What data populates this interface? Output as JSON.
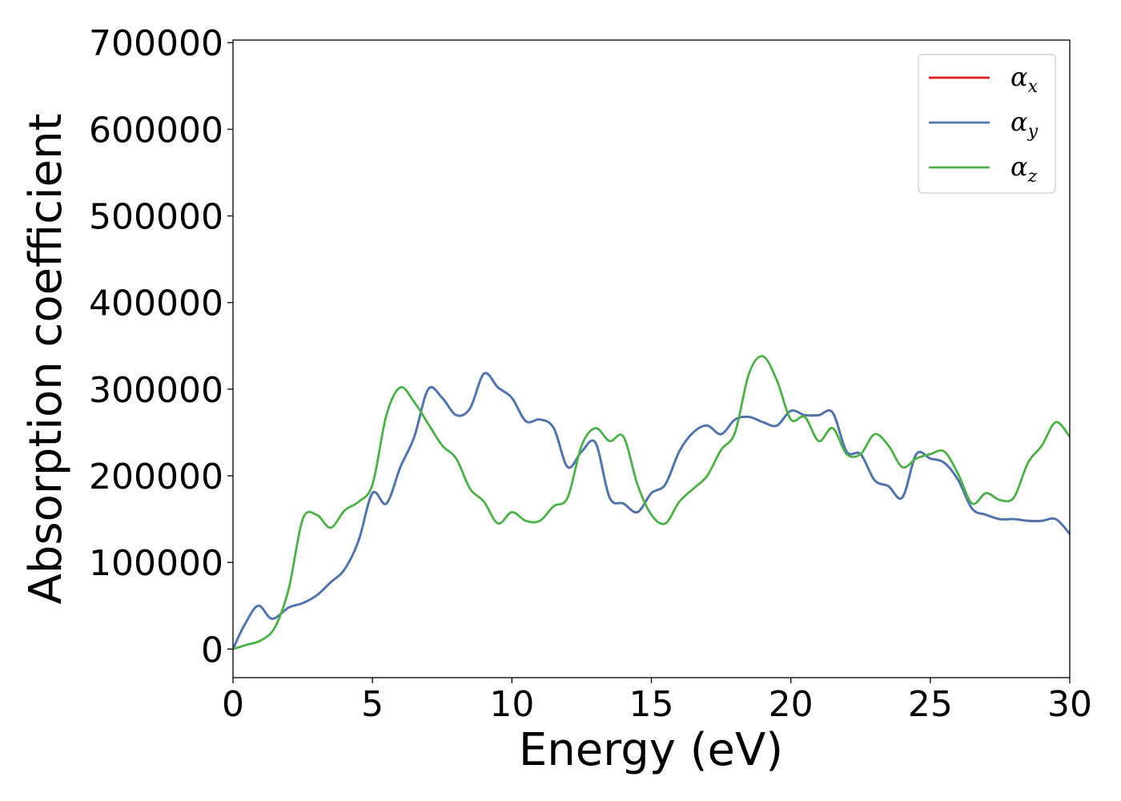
{
  "chart_data": {
    "type": "line",
    "title": "",
    "xlabel": "Energy (eV)",
    "ylabel": "Absorption coefficient",
    "xlim": [
      0,
      30
    ],
    "ylim": [
      -33000,
      703000
    ],
    "xticks": [
      0,
      5,
      10,
      15,
      20,
      25,
      30
    ],
    "yticks": [
      0,
      100000,
      200000,
      300000,
      400000,
      500000,
      600000,
      700000
    ],
    "grid": false,
    "legend_position": "top-right",
    "series": [
      {
        "name": "α_x",
        "legend_base": "α",
        "legend_sub": "x",
        "color": "#e41a1c",
        "x": [
          0,
          0.4,
          0.9,
          1.4,
          2.0,
          2.5,
          3.0,
          3.5,
          4.0,
          4.5,
          5.0,
          5.5,
          6.0,
          6.5,
          7.0,
          7.5,
          8.0,
          8.5,
          9.0,
          9.5,
          10.0,
          10.5,
          11.0,
          11.5,
          12.0,
          12.5,
          13.0,
          13.5,
          14.0,
          14.5,
          15.0,
          15.5,
          16.0,
          16.5,
          17.0,
          17.5,
          18.0,
          18.5,
          19.0,
          19.5,
          20.0,
          20.5,
          21.0,
          21.5,
          22.0,
          22.5,
          23.0,
          23.5,
          24.0,
          24.5,
          25.0,
          25.5,
          26.0,
          26.5,
          27.0,
          27.5,
          28.0,
          28.5,
          29.0,
          29.5,
          30.0
        ],
        "y": [
          0,
          27000,
          50000,
          35000,
          48000,
          53000,
          62000,
          77000,
          92000,
          125000,
          180000,
          168000,
          210000,
          245000,
          300000,
          290000,
          270000,
          278000,
          318000,
          302000,
          290000,
          263000,
          265000,
          255000,
          210000,
          228000,
          238000,
          175000,
          168000,
          158000,
          180000,
          190000,
          228000,
          250000,
          258000,
          248000,
          265000,
          268000,
          262000,
          258000,
          275000,
          270000,
          270000,
          273000,
          228000,
          225000,
          195000,
          188000,
          175000,
          225000,
          220000,
          215000,
          195000,
          162000,
          155000,
          150000,
          150000,
          148000,
          148000,
          150000,
          133000
        ]
      },
      {
        "name": "α_y",
        "legend_base": "α",
        "legend_sub": "y",
        "color": "#4a77b0",
        "x": [
          0,
          0.4,
          0.9,
          1.4,
          2.0,
          2.5,
          3.0,
          3.5,
          4.0,
          4.5,
          5.0,
          5.5,
          6.0,
          6.5,
          7.0,
          7.5,
          8.0,
          8.5,
          9.0,
          9.5,
          10.0,
          10.5,
          11.0,
          11.5,
          12.0,
          12.5,
          13.0,
          13.5,
          14.0,
          14.5,
          15.0,
          15.5,
          16.0,
          16.5,
          17.0,
          17.5,
          18.0,
          18.5,
          19.0,
          19.5,
          20.0,
          20.5,
          21.0,
          21.5,
          22.0,
          22.5,
          23.0,
          23.5,
          24.0,
          24.5,
          25.0,
          25.5,
          26.0,
          26.5,
          27.0,
          27.5,
          28.0,
          28.5,
          29.0,
          29.5,
          30.0
        ],
        "y": [
          0,
          27000,
          50000,
          35000,
          48000,
          53000,
          62000,
          77000,
          92000,
          125000,
          180000,
          168000,
          210000,
          245000,
          300000,
          290000,
          270000,
          278000,
          318000,
          302000,
          290000,
          263000,
          265000,
          255000,
          210000,
          228000,
          238000,
          175000,
          168000,
          158000,
          180000,
          190000,
          228000,
          250000,
          258000,
          248000,
          265000,
          268000,
          262000,
          258000,
          275000,
          270000,
          270000,
          273000,
          228000,
          225000,
          195000,
          188000,
          175000,
          225000,
          220000,
          215000,
          195000,
          162000,
          155000,
          150000,
          150000,
          148000,
          148000,
          150000,
          133000
        ]
      },
      {
        "name": "α_z",
        "legend_base": "α",
        "legend_sub": "z",
        "color": "#4daf4a",
        "x": [
          0,
          0.5,
          1.0,
          1.5,
          2.0,
          2.5,
          3.0,
          3.5,
          4.0,
          4.5,
          5.0,
          5.5,
          6.0,
          6.5,
          7.0,
          7.5,
          8.0,
          8.5,
          9.0,
          9.5,
          10.0,
          10.5,
          11.0,
          11.5,
          12.0,
          12.5,
          13.0,
          13.5,
          14.0,
          14.5,
          15.0,
          15.5,
          16.0,
          16.5,
          17.0,
          17.5,
          18.0,
          18.5,
          19.0,
          19.5,
          20.0,
          20.5,
          21.0,
          21.5,
          22.0,
          22.5,
          23.0,
          23.5,
          24.0,
          24.5,
          25.0,
          25.5,
          26.0,
          26.5,
          27.0,
          27.5,
          28.0,
          28.5,
          29.0,
          29.5,
          30.0
        ],
        "y": [
          0,
          5000,
          10000,
          25000,
          70000,
          150000,
          155000,
          140000,
          160000,
          170000,
          190000,
          270000,
          302000,
          285000,
          260000,
          235000,
          220000,
          185000,
          170000,
          145000,
          158000,
          148000,
          148000,
          165000,
          175000,
          235000,
          255000,
          240000,
          245000,
          190000,
          155000,
          145000,
          170000,
          185000,
          200000,
          230000,
          250000,
          318000,
          338000,
          310000,
          265000,
          268000,
          240000,
          255000,
          225000,
          225000,
          248000,
          235000,
          210000,
          220000,
          225000,
          228000,
          202000,
          168000,
          180000,
          172000,
          175000,
          215000,
          235000,
          262000,
          245000
        ]
      }
    ]
  }
}
